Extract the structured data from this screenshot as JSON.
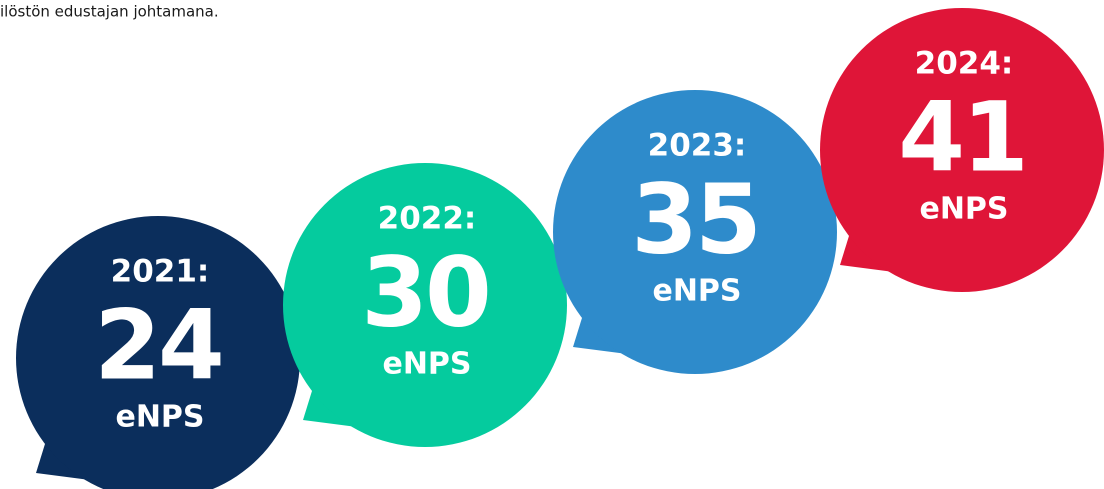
{
  "intro": "ilöstön edustajan johtamana.",
  "bubbles": [
    {
      "year": "2021:",
      "value": 24,
      "unit": "eNPS",
      "color": "#0b2e5c"
    },
    {
      "year": "2022:",
      "value": 30,
      "unit": "eNPS",
      "color": "#05cb9e"
    },
    {
      "year": "2023:",
      "value": 35,
      "unit": "eNPS",
      "color": "#2e8bcb"
    },
    {
      "year": "2024:",
      "value": 41,
      "unit": "eNPS",
      "color": "#df1538"
    }
  ]
}
